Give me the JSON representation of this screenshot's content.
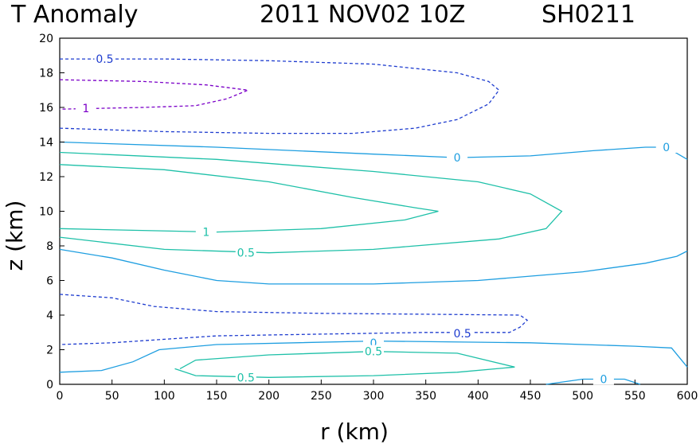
{
  "chart_data": {
    "type": "contour",
    "title_left": "T Anomaly",
    "title_date": "2011 NOV02 10Z",
    "title_storm": "SH0211",
    "xlabel": "r (km)",
    "ylabel": "z (km)",
    "xlim": [
      0,
      600
    ],
    "ylim": [
      0,
      20
    ],
    "xticks": [
      "0",
      "50",
      "100",
      "150",
      "200",
      "250",
      "300",
      "350",
      "400",
      "450",
      "500",
      "550",
      "600"
    ],
    "yticks": [
      "0",
      "2",
      "4",
      "6",
      "8",
      "10",
      "12",
      "14",
      "16",
      "18",
      "20"
    ],
    "contours": [
      {
        "level": "-1",
        "color": "#7b00c8",
        "dashed": true,
        "points": [
          [
            0,
            17.6
          ],
          [
            80,
            17.5
          ],
          [
            140,
            17.3
          ],
          [
            180,
            17.0
          ],
          [
            160,
            16.5
          ],
          [
            130,
            16.1
          ],
          [
            80,
            16.0
          ],
          [
            0,
            15.9
          ]
        ],
        "labels": [
          {
            "text": "1",
            "x": 25,
            "z": 15.95
          }
        ]
      },
      {
        "level": "-0.5",
        "color": "#1e3ccf",
        "dashed": true,
        "points": [
          [
            0,
            18.8
          ],
          [
            100,
            18.8
          ],
          [
            200,
            18.7
          ],
          [
            300,
            18.5
          ],
          [
            380,
            18.0
          ],
          [
            410,
            17.5
          ],
          [
            420,
            17.0
          ],
          [
            410,
            16.2
          ],
          [
            380,
            15.3
          ],
          [
            340,
            14.8
          ],
          [
            280,
            14.5
          ],
          [
            200,
            14.5
          ],
          [
            100,
            14.6
          ],
          [
            0,
            14.8
          ]
        ],
        "labels": [
          {
            "text": "0.5",
            "x": 43,
            "z": 18.8
          }
        ]
      },
      {
        "level": "0",
        "color": "#1e9ee0",
        "dashed": false,
        "points": [
          [
            0,
            14.0
          ],
          [
            150,
            13.7
          ],
          [
            300,
            13.3
          ],
          [
            380,
            13.1
          ],
          [
            450,
            13.2
          ],
          [
            510,
            13.5
          ],
          [
            560,
            13.7
          ],
          [
            580,
            13.7
          ],
          [
            600,
            13.0
          ]
        ],
        "labels": [
          {
            "text": "0",
            "x": 380,
            "z": 13.1
          },
          {
            "text": "0",
            "x": 580,
            "z": 13.7
          }
        ]
      },
      {
        "level": "0.5",
        "color": "#1ec0a8",
        "dashed": false,
        "points": [
          [
            0,
            13.4
          ],
          [
            150,
            13.0
          ],
          [
            300,
            12.3
          ],
          [
            400,
            11.7
          ],
          [
            450,
            11.0
          ],
          [
            480,
            10.0
          ],
          [
            465,
            9.0
          ],
          [
            420,
            8.4
          ],
          [
            300,
            7.8
          ],
          [
            200,
            7.6
          ],
          [
            100,
            7.8
          ],
          [
            0,
            8.5
          ]
        ],
        "labels": [
          {
            "text": "0.5",
            "x": 178,
            "z": 7.6
          }
        ]
      },
      {
        "level": "1",
        "color": "#1ec0a8",
        "dashed": false,
        "points": [
          [
            0,
            12.7
          ],
          [
            100,
            12.4
          ],
          [
            200,
            11.7
          ],
          [
            280,
            10.8
          ],
          [
            340,
            10.2
          ],
          [
            362,
            10.0
          ],
          [
            330,
            9.5
          ],
          [
            250,
            9.0
          ],
          [
            150,
            8.8
          ],
          [
            70,
            8.9
          ],
          [
            0,
            9.0
          ]
        ],
        "labels": [
          {
            "text": "1",
            "x": 140,
            "z": 8.8
          }
        ]
      },
      {
        "level": "0",
        "color": "#1e9ee0",
        "dashed": false,
        "points": [
          [
            0,
            7.8
          ],
          [
            50,
            7.3
          ],
          [
            100,
            6.6
          ],
          [
            150,
            6.0
          ],
          [
            200,
            5.8
          ],
          [
            300,
            5.8
          ],
          [
            400,
            6.0
          ],
          [
            500,
            6.5
          ],
          [
            560,
            7.0
          ],
          [
            590,
            7.4
          ],
          [
            600,
            7.7
          ]
        ],
        "labels": []
      },
      {
        "level": "-0.5",
        "color": "#1e3ccf",
        "dashed": true,
        "points": [
          [
            0,
            5.2
          ],
          [
            50,
            5.0
          ],
          [
            90,
            4.5
          ],
          [
            150,
            4.2
          ],
          [
            250,
            4.1
          ],
          [
            350,
            4.05
          ],
          [
            440,
            4.0
          ],
          [
            447,
            3.7
          ],
          [
            440,
            3.3
          ],
          [
            430,
            3.0
          ],
          [
            350,
            3.0
          ],
          [
            250,
            2.9
          ],
          [
            150,
            2.8
          ],
          [
            100,
            2.6
          ],
          [
            50,
            2.4
          ],
          [
            0,
            2.3
          ]
        ],
        "labels": [
          {
            "text": "0.5",
            "x": 385,
            "z": 2.95
          }
        ]
      },
      {
        "level": "0",
        "color": "#1e9ee0",
        "dashed": false,
        "points": [
          [
            0,
            0.7
          ],
          [
            40,
            0.8
          ],
          [
            70,
            1.3
          ],
          [
            95,
            2.0
          ],
          [
            150,
            2.3
          ],
          [
            300,
            2.5
          ],
          [
            450,
            2.4
          ],
          [
            550,
            2.2
          ],
          [
            585,
            2.1
          ],
          [
            600,
            1.0
          ]
        ],
        "labels": [
          {
            "text": "0",
            "x": 300,
            "z": 2.4
          }
        ]
      },
      {
        "level": "0.5",
        "color": "#1ec0a8",
        "dashed": false,
        "points": [
          [
            115,
            0.9
          ],
          [
            130,
            1.4
          ],
          [
            200,
            1.7
          ],
          [
            300,
            1.9
          ],
          [
            380,
            1.8
          ],
          [
            435,
            1.0
          ],
          [
            380,
            0.7
          ],
          [
            300,
            0.5
          ],
          [
            200,
            0.4
          ],
          [
            130,
            0.5
          ],
          [
            110,
            0.9
          ]
        ],
        "labels": [
          {
            "text": "0.5",
            "x": 300,
            "z": 1.9
          },
          {
            "text": "0.5",
            "x": 178,
            "z": 0.4
          }
        ]
      },
      {
        "level": "0",
        "color": "#1e9ee0",
        "dashed": false,
        "points": [
          [
            465,
            0.0
          ],
          [
            500,
            0.3
          ],
          [
            540,
            0.3
          ],
          [
            555,
            0.0
          ]
        ],
        "labels": [
          {
            "text": "0",
            "x": 520,
            "z": 0.3
          }
        ]
      }
    ]
  }
}
